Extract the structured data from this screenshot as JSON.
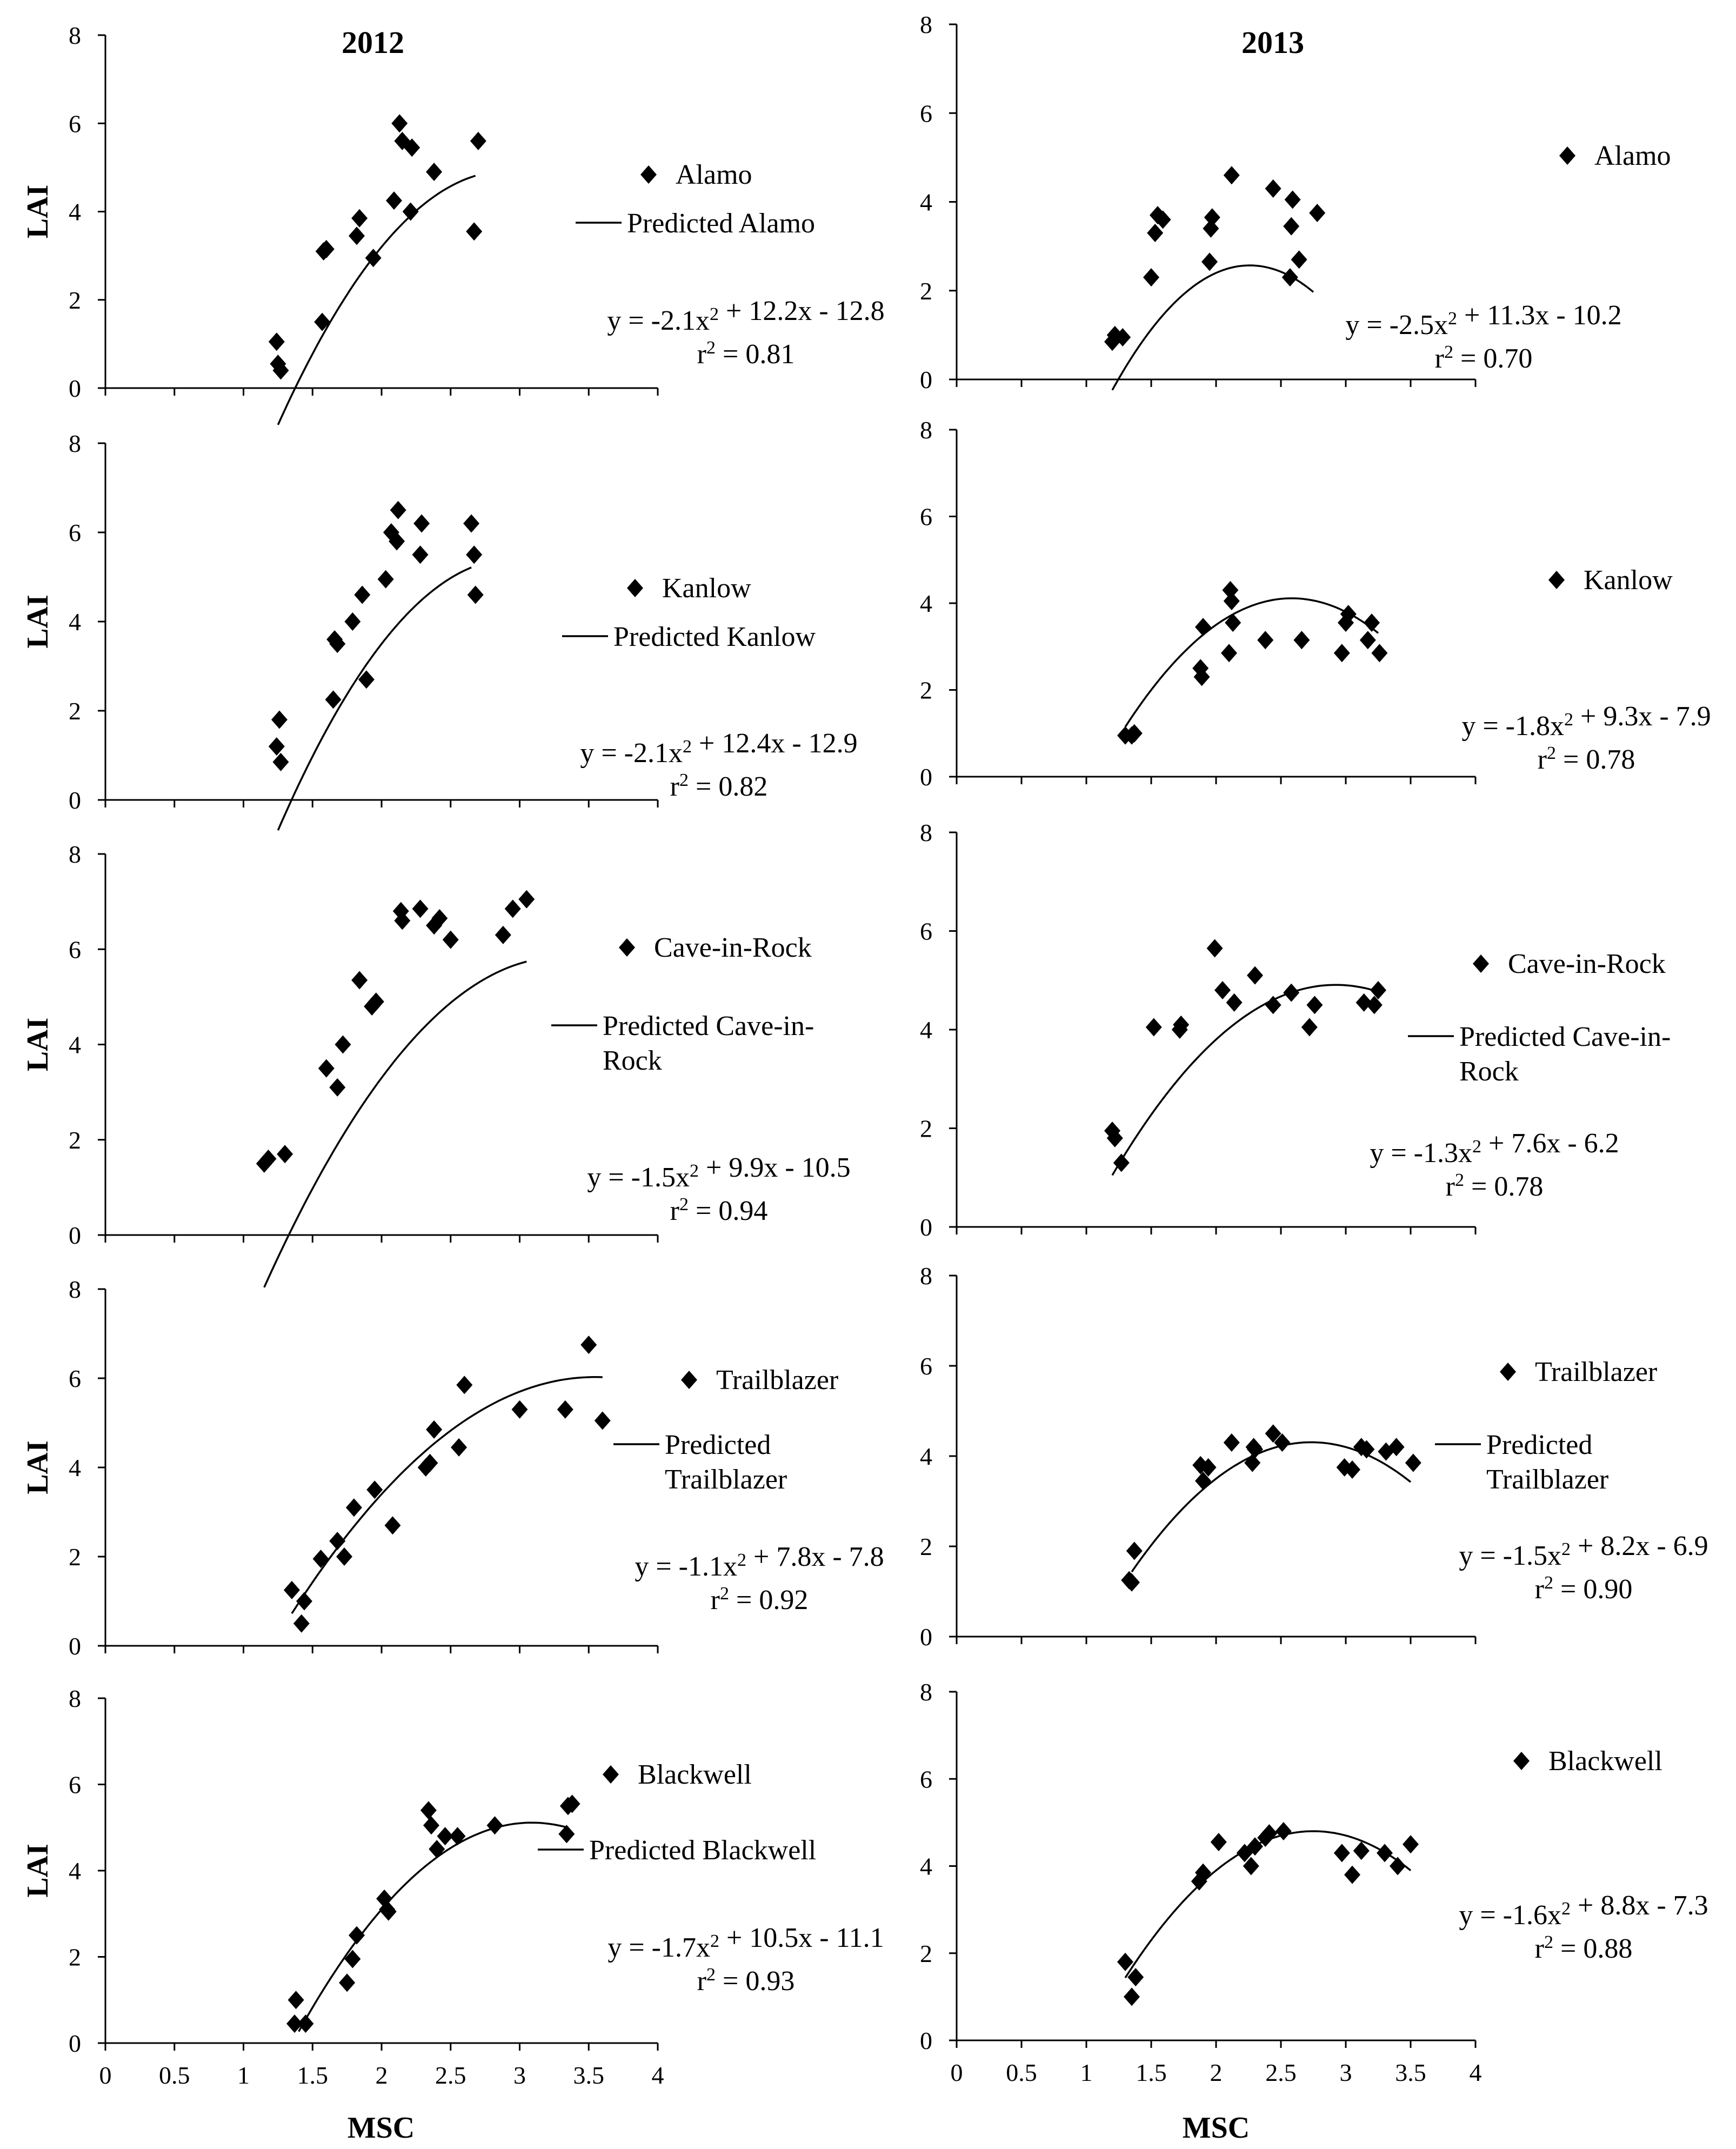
{
  "chart_data": [
    {
      "type": "scatter",
      "cultivar": "Alamo",
      "year_title": "2012",
      "ylabel": "LAI",
      "xlabel": "",
      "xlim": [
        0,
        4
      ],
      "ylim": [
        0,
        8
      ],
      "xticks": [],
      "yticks": [
        "0",
        "2",
        "4",
        "6",
        "8"
      ],
      "legend": [
        "Alamo",
        "Predicted Alamo"
      ],
      "equation": "y = -2.1x² + 12.2x - 12.8",
      "r2": "r² = 0.81",
      "coef": [
        -2.1,
        12.2,
        -12.8
      ],
      "fit_range": [
        1.25,
        2.68
      ],
      "x": [
        1.24,
        1.25,
        1.27,
        1.57,
        1.58,
        1.6,
        1.82,
        1.84,
        1.94,
        2.09,
        2.13,
        2.15,
        2.21,
        2.22,
        2.38,
        2.67,
        2.7
      ],
      "y": [
        1.05,
        0.55,
        0.4,
        1.5,
        3.1,
        3.15,
        3.45,
        3.85,
        2.95,
        4.25,
        6.0,
        5.6,
        4.0,
        5.45,
        4.9,
        3.55,
        5.6
      ]
    },
    {
      "type": "scatter",
      "cultivar": "Alamo",
      "year_title": "2013",
      "ylabel": "",
      "xlabel": "",
      "xlim": [
        0,
        4
      ],
      "ylim": [
        0,
        8
      ],
      "xticks": [],
      "yticks": [
        "0",
        "2",
        "4",
        "6",
        "8"
      ],
      "legend": [
        "Alamo"
      ],
      "equation": "y = -2.5x² + 11.3x - 10.2",
      "r2": "r² = 0.70",
      "coef": [
        -2.5,
        11.3,
        -10.2
      ],
      "fit_range": [
        1.2,
        2.75
      ],
      "x": [
        1.2,
        1.22,
        1.28,
        1.5,
        1.53,
        1.55,
        1.59,
        1.95,
        1.96,
        1.97,
        2.12,
        2.44,
        2.57,
        2.58,
        2.59,
        2.64,
        2.78
      ],
      "y": [
        0.85,
        1.0,
        0.95,
        2.3,
        3.3,
        3.7,
        3.6,
        2.65,
        3.4,
        3.65,
        4.6,
        4.3,
        2.3,
        3.45,
        4.05,
        2.7,
        3.75
      ]
    },
    {
      "type": "scatter",
      "cultivar": "Kanlow",
      "year_title": "",
      "ylabel": "LAI",
      "xlabel": "",
      "xlim": [
        0,
        4
      ],
      "ylim": [
        0,
        8
      ],
      "xticks": [],
      "yticks": [
        "0",
        "2",
        "4",
        "6",
        "8"
      ],
      "legend": [
        "Kanlow",
        "Predicted Kanlow"
      ],
      "equation": "y = -2.1x² + 12.4x - 12.9",
      "r2": "r² = 0.82",
      "coef": [
        -2.1,
        12.4,
        -12.9
      ],
      "fit_range": [
        1.25,
        2.65
      ],
      "x": [
        1.24,
        1.26,
        1.27,
        1.65,
        1.66,
        1.68,
        1.79,
        1.86,
        1.89,
        2.03,
        2.07,
        2.11,
        2.12,
        2.28,
        2.29,
        2.65,
        2.67,
        2.68
      ],
      "y": [
        1.2,
        1.8,
        0.85,
        2.25,
        3.6,
        3.5,
        4.0,
        4.6,
        2.7,
        4.95,
        6.0,
        5.8,
        6.5,
        5.5,
        6.2,
        6.2,
        5.5,
        4.6
      ]
    },
    {
      "type": "scatter",
      "cultivar": "Kanlow",
      "year_title": "",
      "ylabel": "",
      "xlabel": "",
      "xlim": [
        0,
        4
      ],
      "ylim": [
        0,
        8
      ],
      "xticks": [],
      "yticks": [
        "0",
        "2",
        "4",
        "6",
        "8"
      ],
      "legend": [
        "Kanlow"
      ],
      "equation": "y = -1.8x² + 9.3x - 7.9",
      "r2": "r² = 0.78",
      "coef": [
        -1.8,
        9.3,
        -7.9
      ],
      "fit_range": [
        1.3,
        3.25
      ],
      "x": [
        1.3,
        1.35,
        1.37,
        1.88,
        1.89,
        1.9,
        2.1,
        2.11,
        2.12,
        2.13,
        2.38,
        2.66,
        2.97,
        3.0,
        3.02,
        3.17,
        3.2,
        3.26
      ],
      "y": [
        0.95,
        0.95,
        1.0,
        2.5,
        2.3,
        3.45,
        2.85,
        4.3,
        4.05,
        3.55,
        3.15,
        3.15,
        2.85,
        3.55,
        3.75,
        3.15,
        3.55,
        2.85
      ]
    },
    {
      "type": "scatter",
      "cultivar": "Cave-in-Rock",
      "year_title": "",
      "ylabel": "LAI",
      "xlabel": "",
      "xlim": [
        0,
        4
      ],
      "ylim": [
        0,
        8
      ],
      "xticks": [],
      "yticks": [
        "0",
        "2",
        "4",
        "6",
        "8"
      ],
      "legend": [
        "Cave-in-Rock",
        "Predicted Cave-in-Rock"
      ],
      "equation": "y = -1.5x² + 9.9x - 10.5",
      "r2": "r² = 0.94",
      "coef": [
        -1.5,
        9.9,
        -10.5
      ],
      "fit_range": [
        1.15,
        3.05
      ],
      "x": [
        1.15,
        1.18,
        1.3,
        1.6,
        1.68,
        1.72,
        1.84,
        1.93,
        1.96,
        2.14,
        2.15,
        2.28,
        2.38,
        2.42,
        2.5,
        2.88,
        2.95,
        3.05
      ],
      "y": [
        1.5,
        1.6,
        1.7,
        3.5,
        3.1,
        4.0,
        5.35,
        4.8,
        4.9,
        6.8,
        6.6,
        6.85,
        6.5,
        6.65,
        6.2,
        6.3,
        6.85,
        7.05
      ]
    },
    {
      "type": "scatter",
      "cultivar": "Cave-in-Rock",
      "year_title": "",
      "ylabel": "",
      "xlabel": "",
      "xlim": [
        0,
        4
      ],
      "ylim": [
        0,
        8
      ],
      "xticks": [],
      "yticks": [
        "0",
        "2",
        "4",
        "6",
        "8"
      ],
      "legend": [
        "Cave-in-Rock",
        "Predicted Cave-in-Rock"
      ],
      "equation": "y = -1.3x² + 7.6x - 6.2",
      "r2": "r² = 0.78",
      "coef": [
        -1.3,
        7.6,
        -6.2
      ],
      "fit_range": [
        1.2,
        3.25
      ],
      "x": [
        1.2,
        1.22,
        1.27,
        1.52,
        1.72,
        1.73,
        1.99,
        2.05,
        2.14,
        2.3,
        2.44,
        2.58,
        2.72,
        2.76,
        3.14,
        3.22,
        3.25
      ],
      "y": [
        1.95,
        1.8,
        1.3,
        4.05,
        4.0,
        4.1,
        5.65,
        4.8,
        4.55,
        5.1,
        4.5,
        4.75,
        4.05,
        4.5,
        4.55,
        4.5,
        4.8
      ]
    },
    {
      "type": "scatter",
      "cultivar": "Trailblazer",
      "year_title": "",
      "ylabel": "LAI",
      "xlabel": "",
      "xlim": [
        0,
        4
      ],
      "ylim": [
        0,
        8
      ],
      "xticks": [],
      "yticks": [
        "0",
        "2",
        "4",
        "6",
        "8"
      ],
      "legend": [
        "Trailblazer",
        "Predicted Trailblazer"
      ],
      "equation": "y = -1.1x² + 7.8x - 7.8",
      "r2": "r² = 0.92",
      "coef": [
        -1.1,
        7.8,
        -7.8
      ],
      "fit_range": [
        1.35,
        3.6
      ],
      "x": [
        1.35,
        1.42,
        1.44,
        1.56,
        1.68,
        1.73,
        1.8,
        1.95,
        2.08,
        2.32,
        2.35,
        2.38,
        2.56,
        2.6,
        3.0,
        3.33,
        3.5,
        3.6
      ],
      "y": [
        1.25,
        0.5,
        1.0,
        1.95,
        2.35,
        2.0,
        3.1,
        3.5,
        2.7,
        4.0,
        4.1,
        4.85,
        4.45,
        5.85,
        5.3,
        5.3,
        6.75,
        5.05
      ]
    },
    {
      "type": "scatter",
      "cultivar": "Trailblazer",
      "year_title": "",
      "ylabel": "",
      "xlabel": "",
      "xlim": [
        0,
        4
      ],
      "ylim": [
        0,
        8
      ],
      "xticks": [],
      "yticks": [
        "0",
        "2",
        "4",
        "6",
        "8"
      ],
      "legend": [
        "Trailblazer",
        "Predicted Trailblazer"
      ],
      "equation": "y = -1.5x² + 8.2x - 6.9",
      "r2": "r² = 0.90",
      "coef": [
        -1.5,
        8.2,
        -6.9
      ],
      "fit_range": [
        1.35,
        3.5
      ],
      "x": [
        1.33,
        1.35,
        1.37,
        1.88,
        1.9,
        1.94,
        2.12,
        2.28,
        2.29,
        2.3,
        2.44,
        2.51,
        2.99,
        3.05,
        3.12,
        3.16,
        3.31,
        3.39,
        3.52
      ],
      "y": [
        1.25,
        1.2,
        1.9,
        3.8,
        3.45,
        3.75,
        4.3,
        3.85,
        4.2,
        4.15,
        4.5,
        4.3,
        3.75,
        3.7,
        4.2,
        4.15,
        4.1,
        4.2,
        3.85
      ]
    },
    {
      "type": "scatter",
      "cultivar": "Blackwell",
      "year_title": "",
      "ylabel": "LAI",
      "xlabel": "MSC",
      "xlim": [
        0,
        4
      ],
      "ylim": [
        0,
        8
      ],
      "xticks": [
        "0",
        "0.5",
        "1",
        "1.5",
        "2",
        "2.5",
        "3",
        "3.5",
        "4"
      ],
      "yticks": [
        "0",
        "2",
        "4",
        "6",
        "8"
      ],
      "legend": [
        "Blackwell",
        "Predicted Blackwell"
      ],
      "equation": "y = -1.7x² + 10.5x - 11.1",
      "r2": "r² = 0.93",
      "coef": [
        -1.7,
        10.5,
        -11.1
      ],
      "fit_range": [
        1.4,
        3.35
      ],
      "x": [
        1.37,
        1.38,
        1.45,
        1.75,
        1.79,
        1.82,
        2.02,
        2.04,
        2.05,
        2.34,
        2.36,
        2.4,
        2.46,
        2.55,
        2.82,
        3.34,
        3.35,
        3.38
      ],
      "y": [
        0.45,
        1.0,
        0.45,
        1.4,
        1.95,
        2.5,
        3.35,
        3.1,
        3.05,
        5.4,
        5.05,
        4.5,
        4.8,
        4.8,
        5.05,
        4.85,
        5.5,
        5.55
      ]
    },
    {
      "type": "scatter",
      "cultivar": "Blackwell",
      "year_title": "",
      "ylabel": "",
      "xlabel": "MSC",
      "xlim": [
        0,
        4
      ],
      "ylim": [
        0,
        8
      ],
      "xticks": [
        "0",
        "0.5",
        "1",
        "1.5",
        "2",
        "2.5",
        "3",
        "3.5",
        "4"
      ],
      "yticks": [
        "0",
        "2",
        "4",
        "6",
        "8"
      ],
      "legend": [
        "Blackwell"
      ],
      "equation": "y = -1.6x² + 8.8x - 7.3",
      "r2": "r² = 0.88",
      "coef": [
        -1.6,
        8.8,
        -7.3
      ],
      "fit_range": [
        1.3,
        3.5
      ],
      "x": [
        1.3,
        1.35,
        1.38,
        1.87,
        1.9,
        2.02,
        2.22,
        2.27,
        2.3,
        2.38,
        2.41,
        2.52,
        2.97,
        3.05,
        3.12,
        3.3,
        3.4,
        3.5
      ],
      "y": [
        1.8,
        1.0,
        1.45,
        3.65,
        3.85,
        4.55,
        4.3,
        4.0,
        4.45,
        4.65,
        4.75,
        4.8,
        4.3,
        3.8,
        4.35,
        4.3,
        4.0,
        4.5
      ]
    }
  ]
}
